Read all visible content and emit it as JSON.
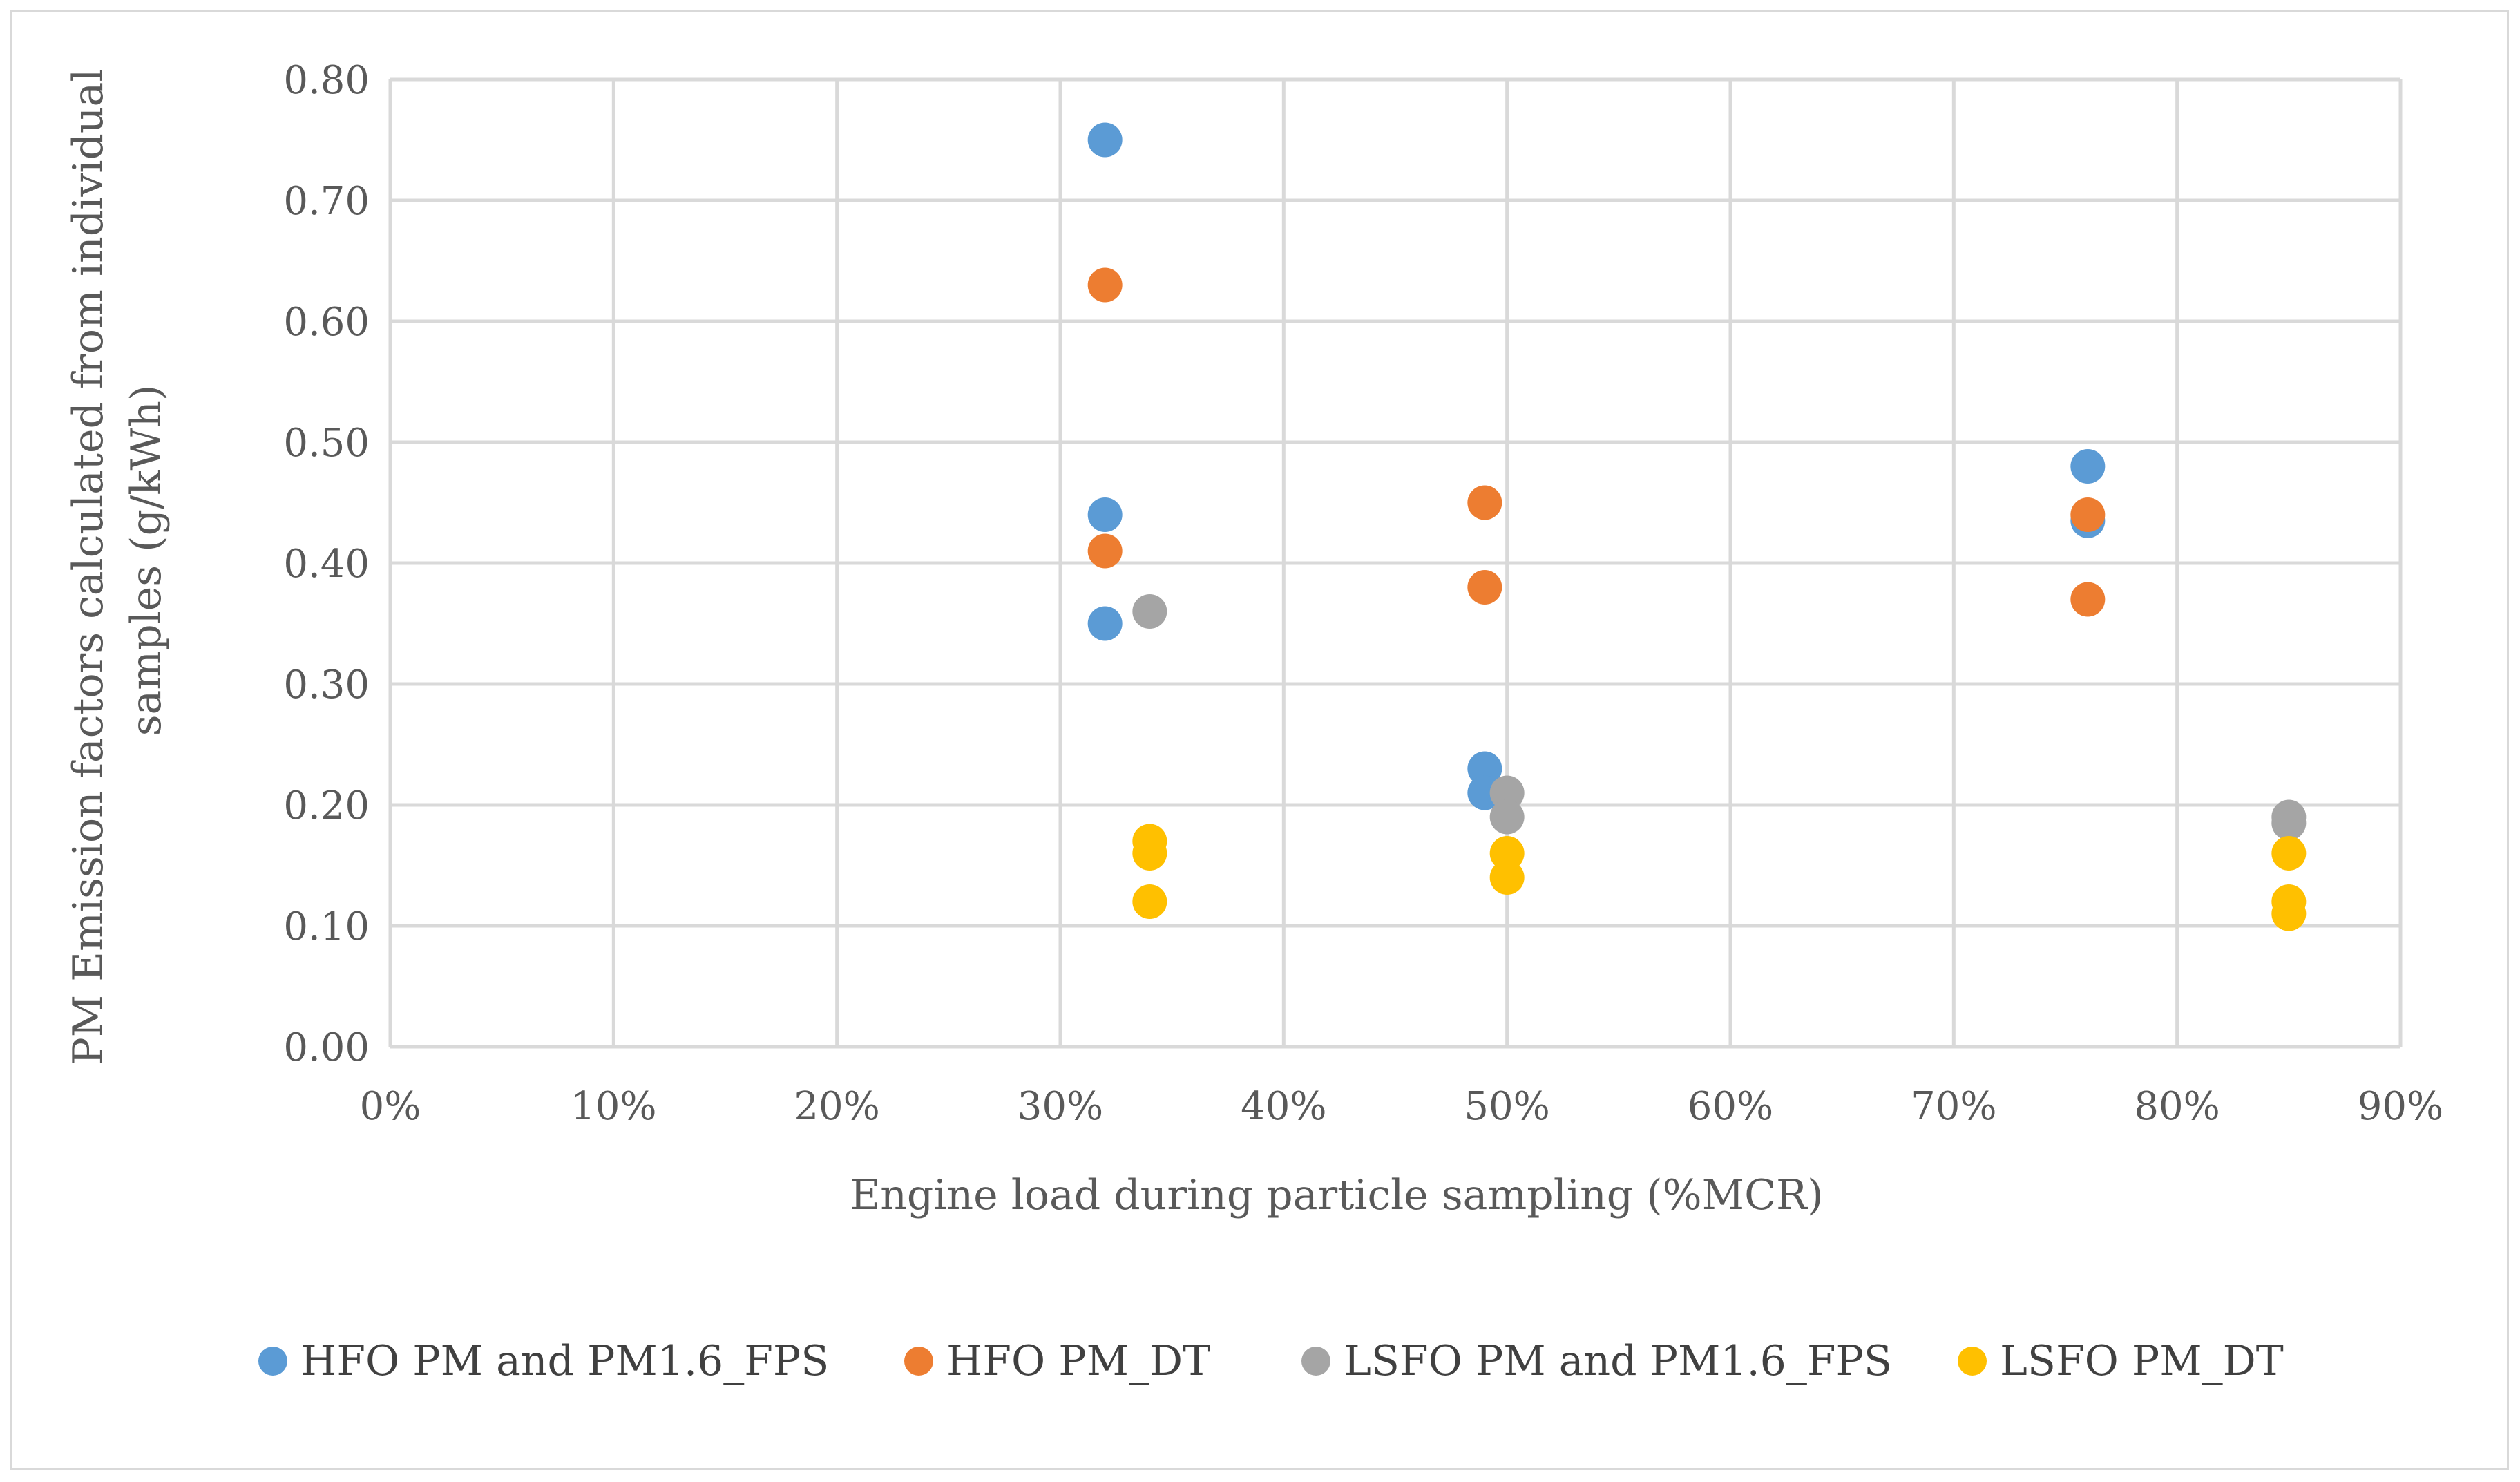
{
  "chart_data": {
    "type": "scatter",
    "title": "",
    "xlabel": "Engine load during particle sampling (%MCR)",
    "ylabel_lines": [
      "PM Emission factors calculated from individual",
      "samples (g/kWh)"
    ],
    "xlim": [
      0,
      0.9
    ],
    "ylim": [
      0,
      0.8
    ],
    "grid": true,
    "legend_position": "bottom",
    "x_ticks": [
      {
        "value": 0.0,
        "label": "0%"
      },
      {
        "value": 0.1,
        "label": "10%"
      },
      {
        "value": 0.2,
        "label": "20%"
      },
      {
        "value": 0.3,
        "label": "30%"
      },
      {
        "value": 0.4,
        "label": "40%"
      },
      {
        "value": 0.5,
        "label": "50%"
      },
      {
        "value": 0.6,
        "label": "60%"
      },
      {
        "value": 0.7,
        "label": "70%"
      },
      {
        "value": 0.8,
        "label": "80%"
      },
      {
        "value": 0.9,
        "label": "90%"
      }
    ],
    "y_ticks": [
      {
        "value": 0.0,
        "label": "0.00"
      },
      {
        "value": 0.1,
        "label": "0.10"
      },
      {
        "value": 0.2,
        "label": "0.20"
      },
      {
        "value": 0.3,
        "label": "0.30"
      },
      {
        "value": 0.4,
        "label": "0.40"
      },
      {
        "value": 0.5,
        "label": "0.50"
      },
      {
        "value": 0.6,
        "label": "0.60"
      },
      {
        "value": 0.7,
        "label": "0.70"
      },
      {
        "value": 0.8,
        "label": "0.80"
      }
    ],
    "series": [
      {
        "name": "HFO PM and PM1.6_FPS",
        "color": "#5b9bd5",
        "points": [
          {
            "x": 0.32,
            "y": 0.75
          },
          {
            "x": 0.32,
            "y": 0.44
          },
          {
            "x": 0.32,
            "y": 0.35
          },
          {
            "x": 0.49,
            "y": 0.23
          },
          {
            "x": 0.49,
            "y": 0.21
          },
          {
            "x": 0.76,
            "y": 0.48
          },
          {
            "x": 0.76,
            "y": 0.435
          }
        ]
      },
      {
        "name": "HFO PM_DT",
        "color": "#ed7d31",
        "points": [
          {
            "x": 0.32,
            "y": 0.63
          },
          {
            "x": 0.32,
            "y": 0.41
          },
          {
            "x": 0.49,
            "y": 0.45
          },
          {
            "x": 0.49,
            "y": 0.38
          },
          {
            "x": 0.76,
            "y": 0.44
          },
          {
            "x": 0.76,
            "y": 0.37
          }
        ]
      },
      {
        "name": "LSFO PM and PM1.6_FPS",
        "color": "#a5a5a5",
        "points": [
          {
            "x": 0.34,
            "y": 0.36
          },
          {
            "x": 0.5,
            "y": 0.21
          },
          {
            "x": 0.5,
            "y": 0.19
          },
          {
            "x": 0.85,
            "y": 0.19
          },
          {
            "x": 0.85,
            "y": 0.185
          }
        ]
      },
      {
        "name": "LSFO PM_DT",
        "color": "#ffc000",
        "points": [
          {
            "x": 0.34,
            "y": 0.17
          },
          {
            "x": 0.34,
            "y": 0.16
          },
          {
            "x": 0.34,
            "y": 0.12
          },
          {
            "x": 0.5,
            "y": 0.16
          },
          {
            "x": 0.5,
            "y": 0.14
          },
          {
            "x": 0.85,
            "y": 0.16
          },
          {
            "x": 0.85,
            "y": 0.12
          },
          {
            "x": 0.85,
            "y": 0.11
          }
        ]
      }
    ]
  }
}
